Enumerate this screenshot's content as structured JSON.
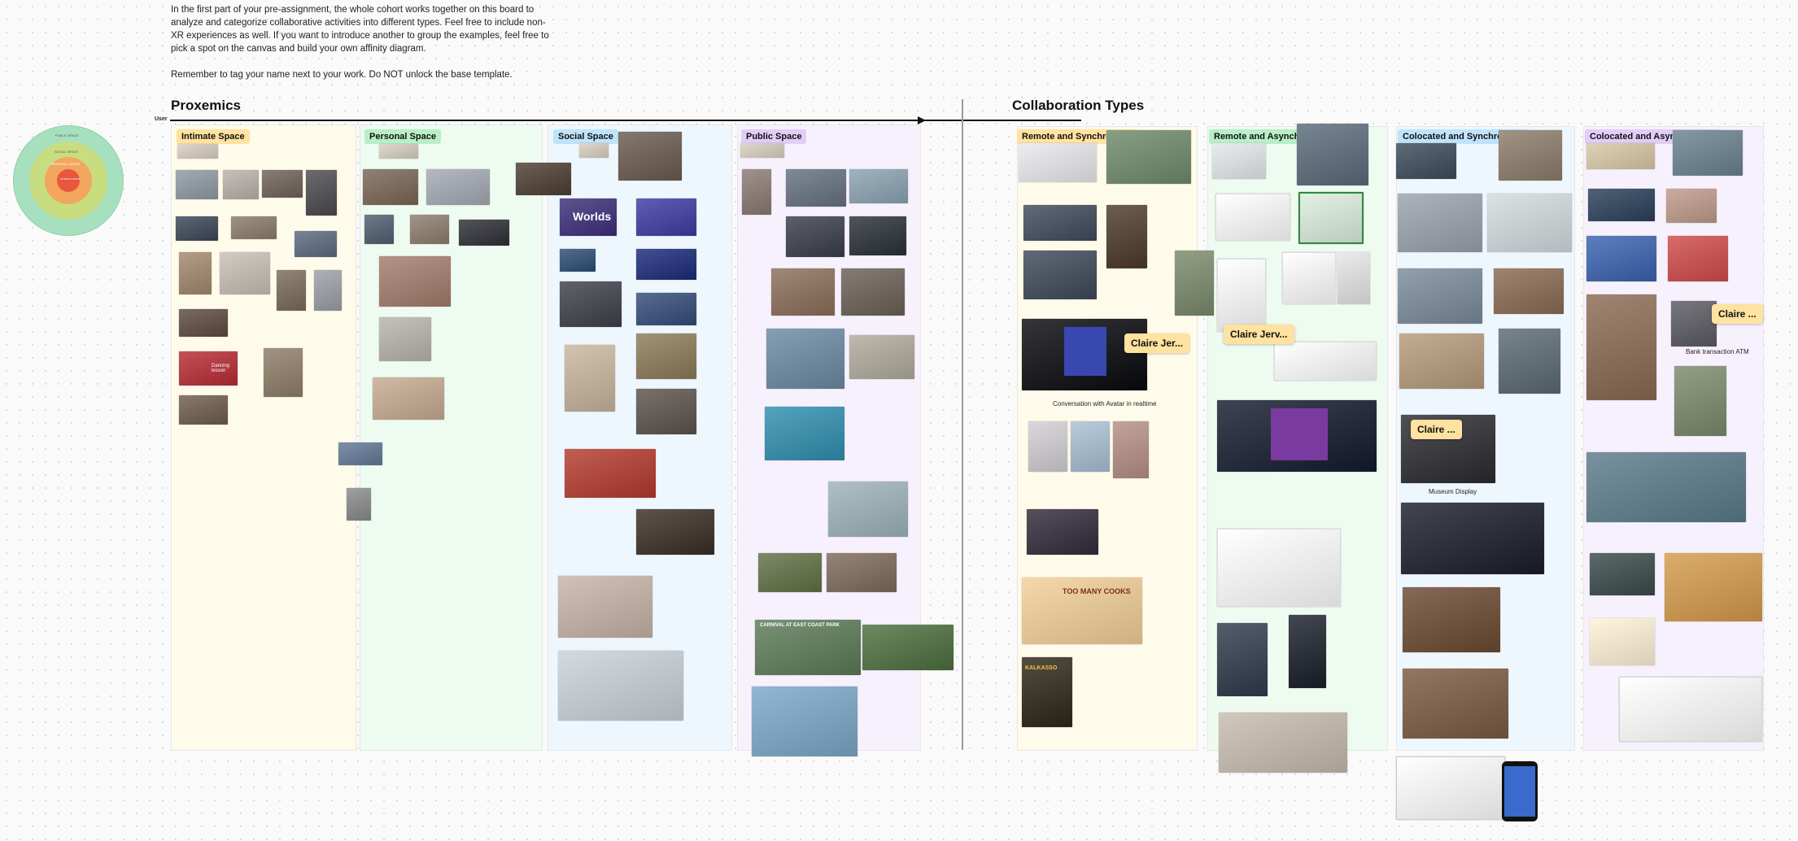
{
  "intro": {
    "paragraph1": "In the first part of your pre-assignment, the whole cohort works together on this board to analyze and categorize collaborative activities into different types. Feel free to include non-XR experiences as well. If you want to introduce another to group the examples, feel free to pick a spot on the canvas and build your own affinity diagram.",
    "paragraph2": "Remember to tag your name next to your work. Do NOT unlock the base template."
  },
  "proxemics": {
    "title": "Proxemics",
    "axis_label": "User",
    "columns": [
      {
        "key": "intimate",
        "label": "Intimate Space",
        "tag_color": "#ffe2a0",
        "bg": "#fffbea"
      },
      {
        "key": "personal",
        "label": "Personal Space",
        "tag_color": "#b8efc6",
        "bg": "#eefbf0"
      },
      {
        "key": "social",
        "label": "Social Space",
        "tag_color": "#bfe3fb",
        "bg": "#eef7fd"
      },
      {
        "key": "public",
        "label": "Public Space",
        "tag_color": "#e2cdf8",
        "bg": "#f7f1fd"
      }
    ]
  },
  "collaboration": {
    "title": "Collaboration Types",
    "columns": [
      {
        "key": "remote-sync",
        "label": "Remote and Synchronous",
        "tag_color": "#ffe2a0",
        "bg": "#fffbea"
      },
      {
        "key": "remote-async",
        "label": "Remote and Asynchronous",
        "tag_color": "#b8efc6",
        "bg": "#eefbf0"
      },
      {
        "key": "colocated-sync",
        "label": "Colocated and Synchronous",
        "tag_color": "#bfe3fb",
        "bg": "#eef7fd"
      },
      {
        "key": "colocated-async",
        "label": "Colocated and Asynchronous",
        "tag_color": "#e2cdf8",
        "bg": "#f7f1fd"
      }
    ]
  },
  "diagram": {
    "rings": [
      {
        "label": "PUBLIC SPACE",
        "color": "#a7e0bf"
      },
      {
        "label": "SOCIAL SPACE",
        "color": "#c8dd7f"
      },
      {
        "label": "PERSONAL SPACE",
        "color": "#f2a65e"
      },
      {
        "label": "INTIMATE SPACE",
        "color": "#e8563b"
      }
    ]
  },
  "cursor_labels": {
    "claire_1": "Claire Jer...",
    "claire_2": "Claire Jerv...",
    "claire_3": "Claire ...",
    "claire_4": "Claire ..."
  },
  "captions": {
    "conversation_avatar": "Conversation with Avatar in realtime",
    "museum_display": "Museum Display",
    "bank_atm": "Bank transaction ATM",
    "worlds": "Worlds",
    "dancing": "Dancing\nlesson",
    "carnival": "CARNIVAL AT EAST COAST PARK",
    "too_many_cooks": "TOO MANY COOKS",
    "kalkasso": "KALKASSO"
  },
  "colors": {
    "intimate_tag": "#ffe2a0",
    "personal_tag": "#b8efc6",
    "social_tag": "#bfe3fb",
    "public_tag": "#e2cdf8",
    "cursor_label": "#ffe2a0"
  }
}
